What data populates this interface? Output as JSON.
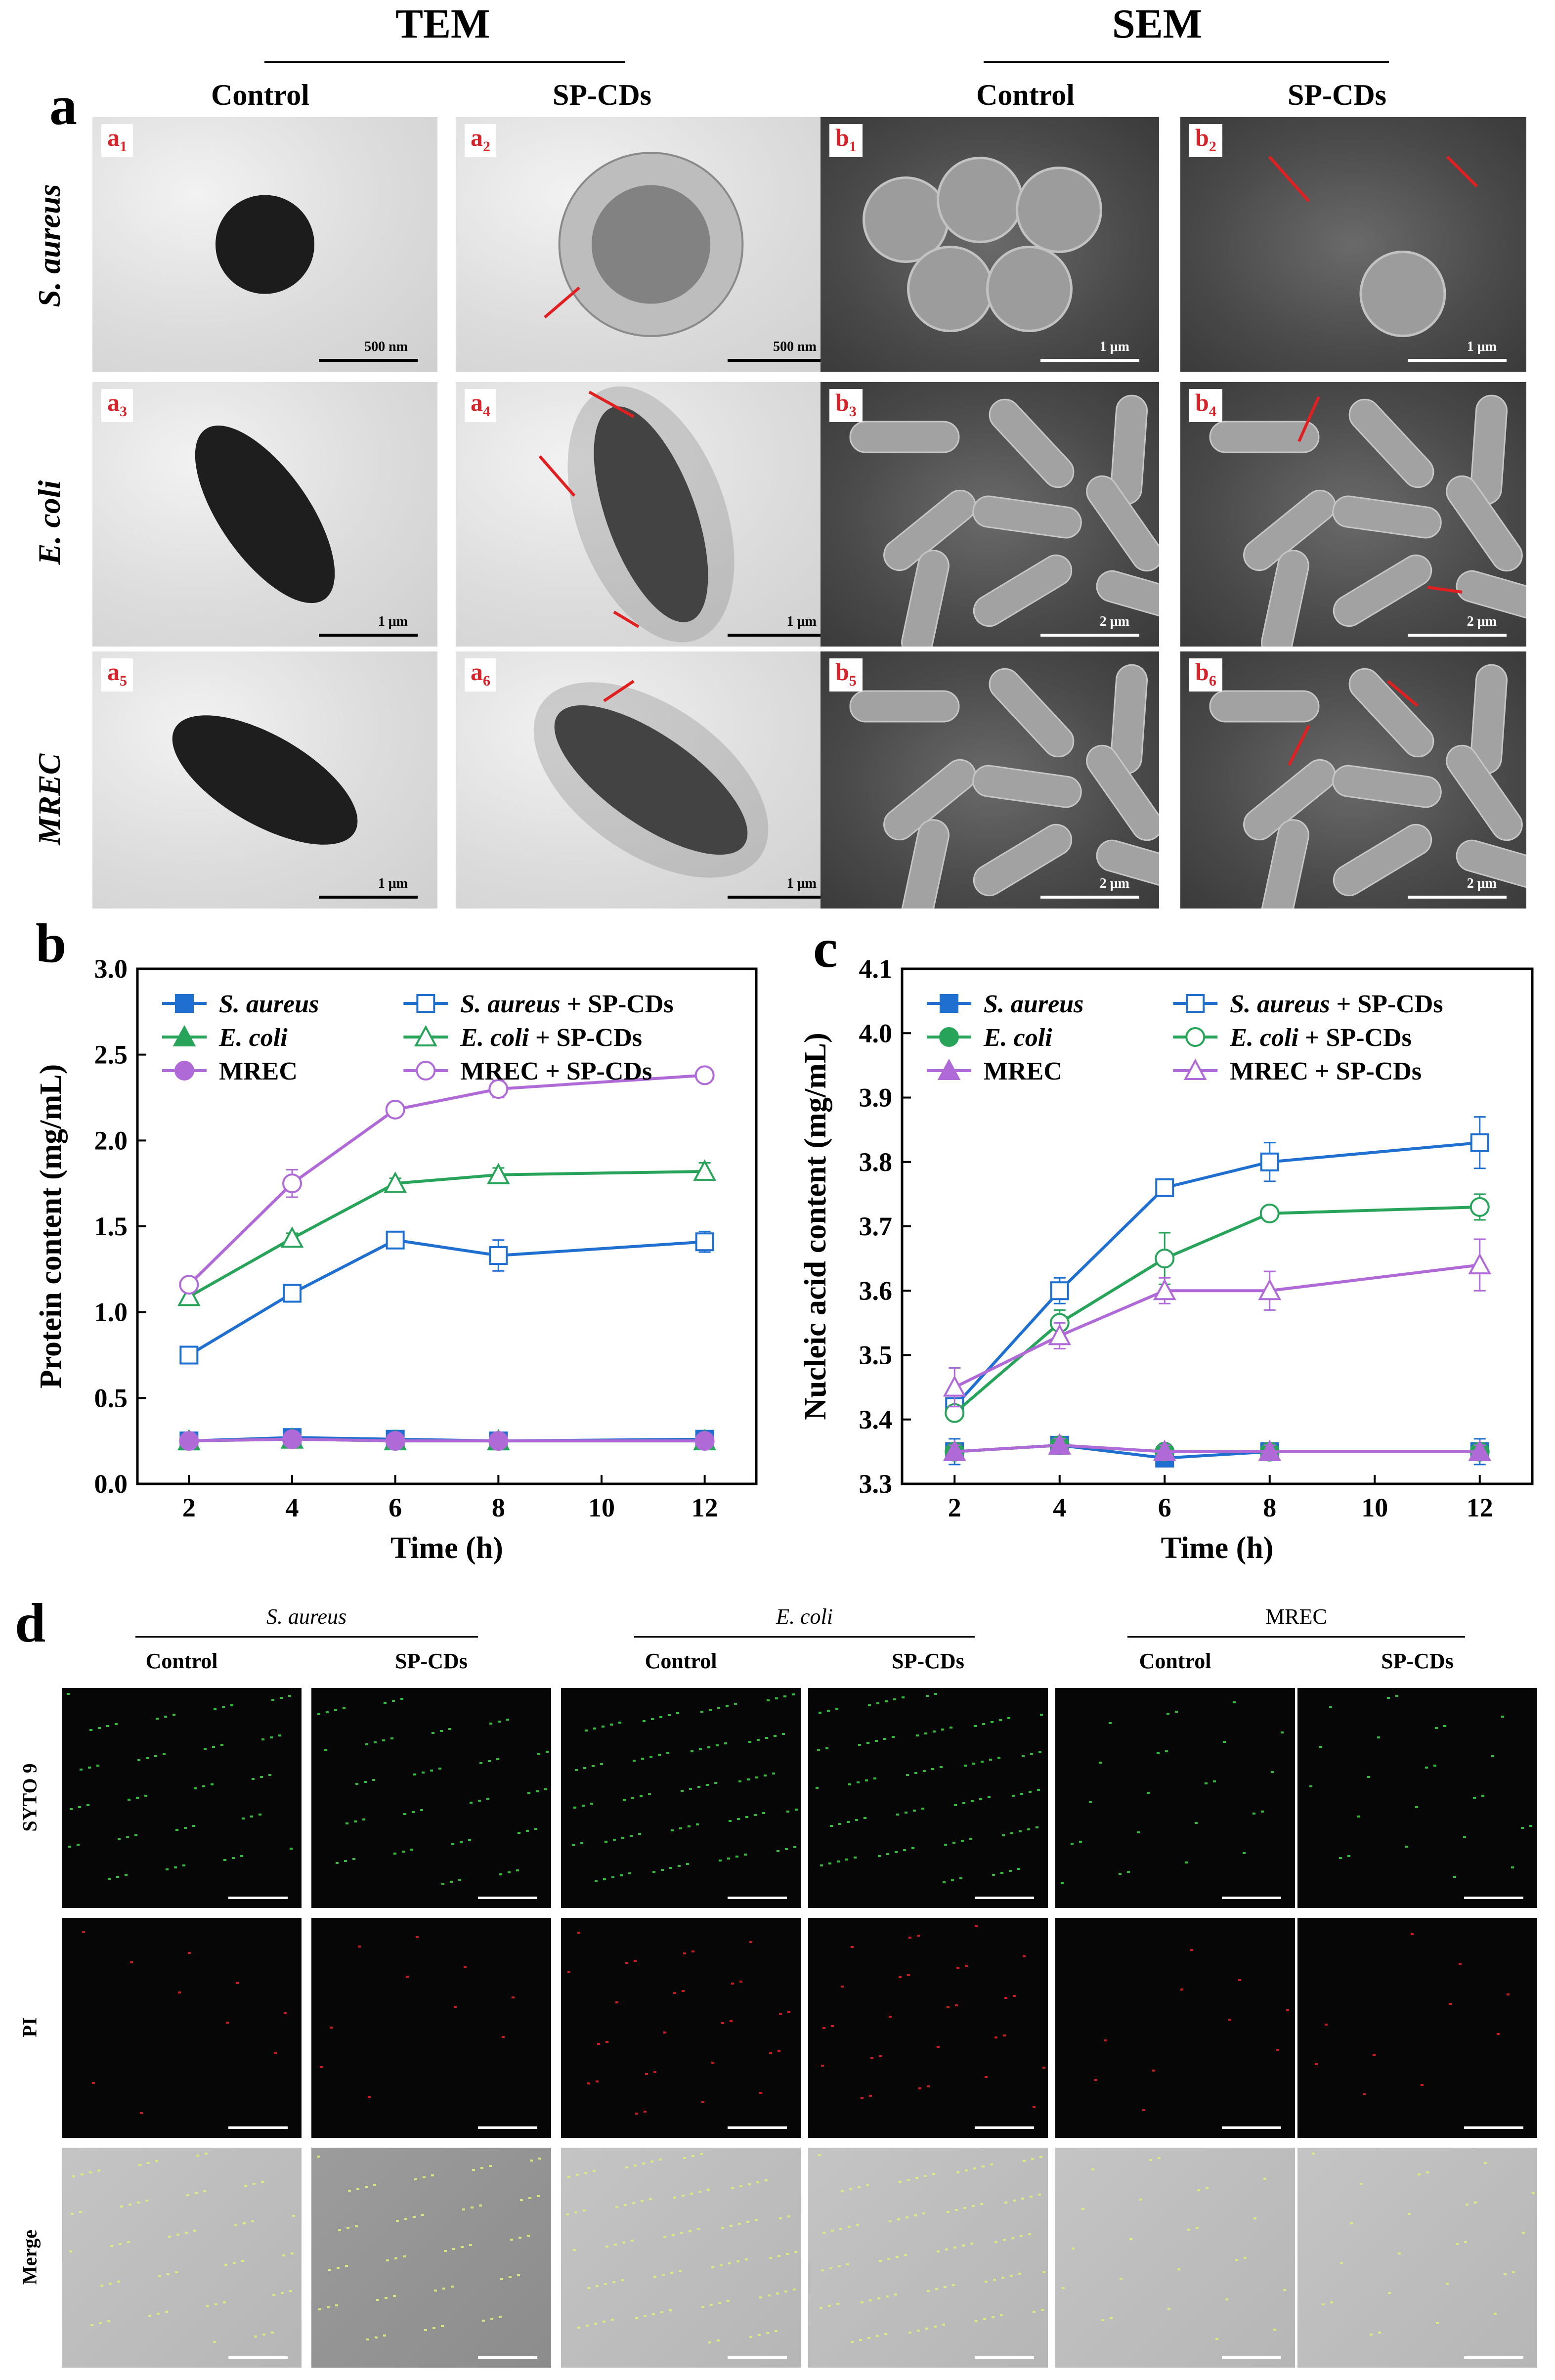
{
  "panel_a": {
    "letter": "a",
    "tem_header": "TEM",
    "sem_header": "SEM",
    "col_control": "Control",
    "col_treated": "SP-CDs",
    "rows": [
      "S. aureus",
      "E. coli",
      "MREC"
    ],
    "tem_tags": [
      {
        "main": "a",
        "sub": "1"
      },
      {
        "main": "a",
        "sub": "2"
      },
      {
        "main": "a",
        "sub": "3"
      },
      {
        "main": "a",
        "sub": "4"
      },
      {
        "main": "a",
        "sub": "5"
      },
      {
        "main": "a",
        "sub": "6"
      }
    ],
    "sem_tags": [
      {
        "main": "b",
        "sub": "1"
      },
      {
        "main": "b",
        "sub": "2"
      },
      {
        "main": "b",
        "sub": "3"
      },
      {
        "main": "b",
        "sub": "4"
      },
      {
        "main": "b",
        "sub": "5"
      },
      {
        "main": "b",
        "sub": "6"
      }
    ],
    "tem_scales": [
      "500 nm",
      "500 nm",
      "1 μm",
      "1 μm",
      "1 μm",
      "1 μm"
    ],
    "sem_scales": [
      "1 μm",
      "1 μm",
      "2 μm",
      "2 μm",
      "2 μm",
      "2 μm"
    ]
  },
  "chart_data": [
    {
      "type": "line",
      "panel": "b",
      "xlabel": "Time (h)",
      "ylabel": "Protein content (mg/mL)",
      "xlim": [
        1,
        13
      ],
      "ylim": [
        0,
        3.0
      ],
      "xticks": [
        2,
        4,
        6,
        8,
        10,
        12
      ],
      "yticks": [
        "0.0",
        "0.5",
        "1.0",
        "1.5",
        "2.0",
        "2.5",
        "3.0"
      ],
      "x": [
        2,
        4,
        6,
        8,
        12
      ],
      "legend_position": "top",
      "series": [
        {
          "name": "S. aureus",
          "italic": true,
          "suffix": "",
          "color": "#1f6fd1",
          "marker": "square",
          "filled": true,
          "values": [
            0.25,
            0.27,
            0.26,
            0.25,
            0.26
          ],
          "errors": [
            0.02,
            0.02,
            0.02,
            0.02,
            0.02
          ]
        },
        {
          "name": "S. aureus",
          "italic": true,
          "suffix": " + SP-CDs",
          "color": "#1f6fd1",
          "marker": "square",
          "filled": false,
          "values": [
            0.75,
            1.11,
            1.42,
            1.33,
            1.41
          ],
          "errors": [
            0.05,
            0.03,
            0.03,
            0.09,
            0.06
          ]
        },
        {
          "name": "E. coli",
          "italic": true,
          "suffix": "",
          "color": "#27a35a",
          "marker": "triangle",
          "filled": true,
          "values": [
            0.25,
            0.26,
            0.25,
            0.25,
            0.25
          ],
          "errors": [
            0.02,
            0.02,
            0.02,
            0.02,
            0.02
          ]
        },
        {
          "name": "E. coli",
          "italic": true,
          "suffix": " + SP-CDs",
          "color": "#27a35a",
          "marker": "triangle",
          "filled": false,
          "values": [
            1.09,
            1.43,
            1.75,
            1.8,
            1.82
          ],
          "errors": [
            0.03,
            0.03,
            0.03,
            0.04,
            0.05
          ]
        },
        {
          "name": "MREC",
          "italic": false,
          "suffix": "",
          "color": "#b06ad8",
          "marker": "circle",
          "filled": true,
          "values": [
            0.25,
            0.26,
            0.25,
            0.25,
            0.25
          ],
          "errors": [
            0.02,
            0.02,
            0.02,
            0.02,
            0.02
          ]
        },
        {
          "name": "MREC",
          "italic": false,
          "suffix": " + SP-CDs",
          "color": "#b06ad8",
          "marker": "circle",
          "filled": false,
          "values": [
            1.16,
            1.75,
            2.18,
            2.3,
            2.38
          ],
          "errors": [
            0.03,
            0.08,
            0.03,
            0.05,
            0.03
          ]
        }
      ]
    },
    {
      "type": "line",
      "panel": "c",
      "xlabel": "Time (h)",
      "ylabel": "Nucleic acid content (mg/mL)",
      "xlim": [
        1,
        13
      ],
      "ylim": [
        3.3,
        4.1
      ],
      "xticks": [
        2,
        4,
        6,
        8,
        10,
        12
      ],
      "yticks": [
        "3.3",
        "3.4",
        "3.5",
        "3.6",
        "3.7",
        "3.8",
        "3.9",
        "4.0",
        "4.1"
      ],
      "x": [
        2,
        4,
        6,
        8,
        12
      ],
      "legend_position": "top",
      "series": [
        {
          "name": "S. aureus",
          "italic": true,
          "suffix": "",
          "color": "#1f6fd1",
          "marker": "square",
          "filled": true,
          "values": [
            3.35,
            3.36,
            3.34,
            3.35,
            3.35
          ],
          "errors": [
            0.02,
            0.01,
            0.01,
            0.01,
            0.02
          ]
        },
        {
          "name": "S. aureus",
          "italic": true,
          "suffix": " + SP-CDs",
          "color": "#1f6fd1",
          "marker": "square",
          "filled": false,
          "values": [
            3.42,
            3.6,
            3.76,
            3.8,
            3.83
          ],
          "errors": [
            0.02,
            0.02,
            0.01,
            0.03,
            0.04
          ]
        },
        {
          "name": "E. coli",
          "italic": true,
          "suffix": "",
          "color": "#27a35a",
          "marker": "circle",
          "filled": true,
          "values": [
            3.35,
            3.36,
            3.35,
            3.35,
            3.35
          ],
          "errors": [
            0.01,
            0.01,
            0.01,
            0.01,
            0.01
          ]
        },
        {
          "name": "E. coli",
          "italic": true,
          "suffix": " + SP-CDs",
          "color": "#27a35a",
          "marker": "circle",
          "filled": false,
          "values": [
            3.41,
            3.55,
            3.65,
            3.72,
            3.73
          ],
          "errors": [
            0.01,
            0.02,
            0.04,
            0.01,
            0.02
          ]
        },
        {
          "name": "MREC",
          "italic": false,
          "suffix": "",
          "color": "#b06ad8",
          "marker": "triangle",
          "filled": true,
          "values": [
            3.35,
            3.36,
            3.35,
            3.35,
            3.35
          ],
          "errors": [
            0.01,
            0.01,
            0.01,
            0.01,
            0.01
          ]
        },
        {
          "name": "MREC",
          "italic": false,
          "suffix": " + SP-CDs",
          "color": "#b06ad8",
          "marker": "triangle",
          "filled": false,
          "values": [
            3.45,
            3.53,
            3.6,
            3.6,
            3.64
          ],
          "errors": [
            0.03,
            0.02,
            0.02,
            0.03,
            0.04
          ]
        }
      ]
    }
  ],
  "panel_d": {
    "letter": "d",
    "groups": [
      "S. aureus",
      "E. coli",
      "MREC"
    ],
    "group_italic": [
      true,
      true,
      false
    ],
    "col_control": "Control",
    "col_treated": "SP-CDs",
    "rows": [
      "SYTO 9",
      "PI",
      "Merge"
    ],
    "colors": {
      "syto": "#37d43b",
      "pi": "#e02020",
      "merge": "#d8f07a"
    }
  }
}
